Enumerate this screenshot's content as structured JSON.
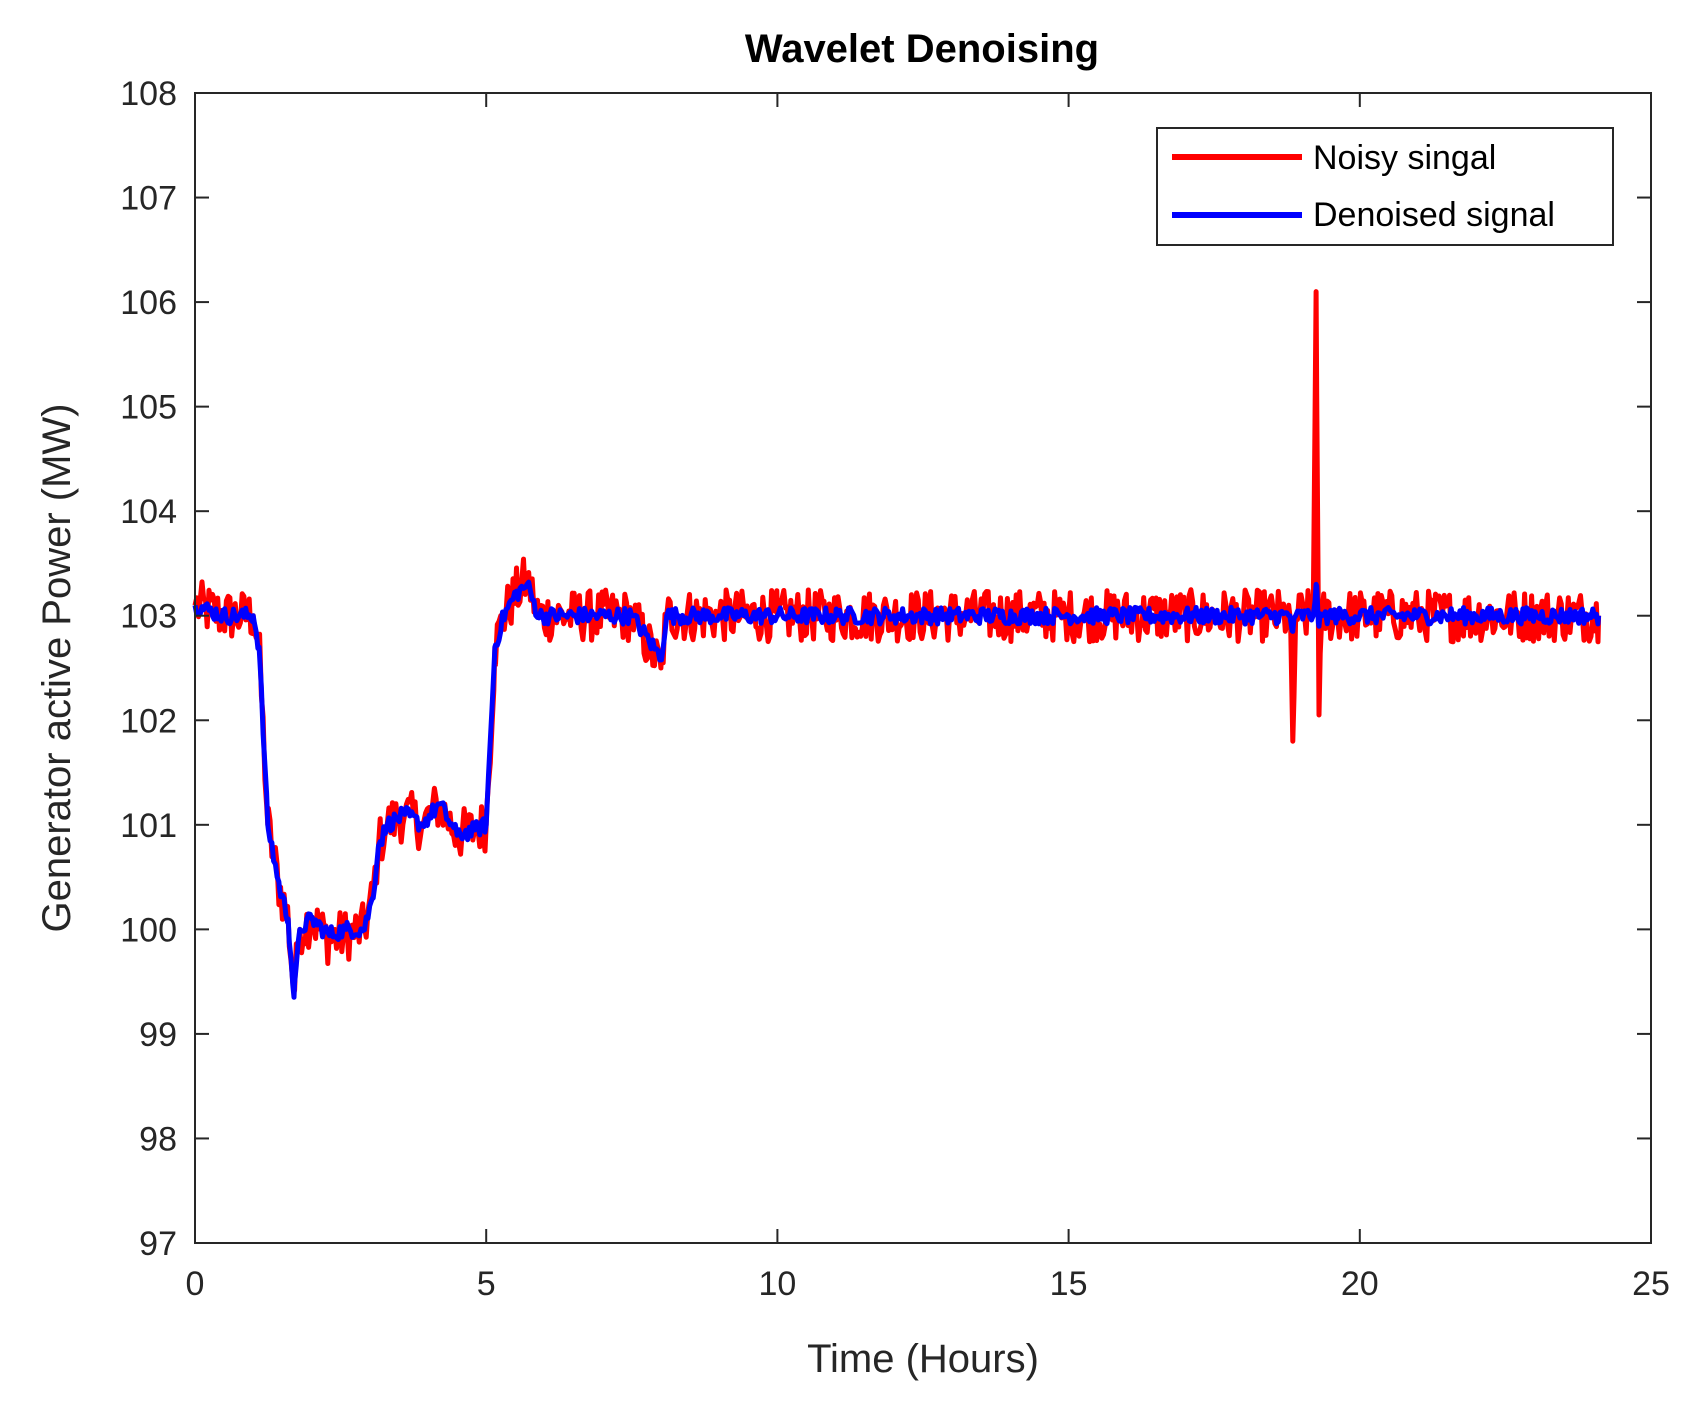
{
  "chart_data": {
    "type": "line",
    "title": "Wavelet Denoising",
    "xlabel": "Time (Hours)",
    "ylabel": "Generator active Power (MW)",
    "xlim": [
      0,
      25
    ],
    "ylim": [
      97,
      108
    ],
    "xticks": [
      0,
      5,
      10,
      15,
      20,
      25
    ],
    "yticks": [
      97,
      98,
      99,
      100,
      101,
      102,
      103,
      104,
      105,
      106,
      107,
      108
    ],
    "grid": false,
    "legend_position": "top-right",
    "colors": {
      "noisy": "#ff0000",
      "denoised": "#0000ff",
      "axis": "#262626"
    },
    "series": [
      {
        "name": "Noisy singal",
        "color": "#ff0000",
        "noise_amplitude": 0.25,
        "x": [
          0,
          0.5,
          1.0,
          1.1,
          1.25,
          1.45,
          1.6,
          1.7,
          1.8,
          2.0,
          2.3,
          2.6,
          2.9,
          3.05,
          3.15,
          3.3,
          3.6,
          3.9,
          4.2,
          4.5,
          4.8,
          5.0,
          5.15,
          5.3,
          5.5,
          5.7,
          5.9,
          6.5,
          7.5,
          8.0,
          8.1,
          8.3,
          9,
          10,
          11,
          12,
          13,
          14,
          15,
          16,
          17,
          18,
          18.8,
          18.85,
          18.9,
          19.2,
          19.25,
          19.3,
          19.35,
          19.6,
          20,
          21,
          22,
          23,
          24.1
        ],
        "y": [
          103.1,
          103.0,
          103.0,
          102.7,
          101.0,
          100.4,
          100.1,
          99.4,
          100.0,
          100.1,
          99.9,
          99.95,
          100.0,
          100.3,
          100.8,
          101.0,
          101.1,
          101.0,
          101.2,
          100.9,
          100.95,
          101.0,
          102.7,
          103.0,
          103.2,
          103.35,
          103.0,
          103.0,
          103.0,
          102.5,
          103.0,
          103.0,
          103.0,
          103.0,
          103.0,
          103.0,
          103.0,
          103.0,
          103.0,
          103.0,
          103.0,
          103.0,
          103.0,
          101.8,
          103.0,
          103.0,
          106.1,
          102.05,
          103.0,
          103.0,
          103.0,
          103.0,
          103.0,
          103.0,
          103.0
        ]
      },
      {
        "name": "Denoised signal",
        "color": "#0000ff",
        "noise_amplitude": 0.08,
        "x": [
          0,
          0.5,
          1.0,
          1.1,
          1.25,
          1.45,
          1.6,
          1.7,
          1.8,
          2.0,
          2.3,
          2.6,
          2.9,
          3.05,
          3.15,
          3.3,
          3.6,
          3.9,
          4.2,
          4.5,
          4.8,
          5.0,
          5.15,
          5.3,
          5.5,
          5.7,
          5.9,
          6.5,
          7.5,
          8.0,
          8.1,
          8.3,
          9,
          10,
          11,
          12,
          13,
          14,
          15,
          16,
          17,
          18,
          18.8,
          18.85,
          18.9,
          19.2,
          19.25,
          19.3,
          19.35,
          19.6,
          20,
          21,
          22,
          23,
          24.1
        ],
        "y": [
          103.1,
          103.0,
          103.0,
          102.7,
          101.0,
          100.4,
          100.1,
          99.35,
          100.0,
          100.1,
          99.95,
          100.0,
          100.0,
          100.3,
          100.8,
          101.0,
          101.1,
          101.0,
          101.2,
          100.9,
          100.95,
          101.0,
          102.7,
          103.0,
          103.2,
          103.3,
          103.0,
          103.0,
          103.0,
          102.6,
          103.0,
          103.0,
          103.0,
          103.0,
          103.0,
          103.0,
          103.0,
          103.0,
          103.0,
          103.0,
          103.0,
          103.0,
          103.0,
          102.85,
          103.0,
          103.0,
          103.3,
          102.9,
          103.0,
          103.0,
          103.0,
          103.0,
          103.0,
          103.0,
          103.0
        ]
      }
    ]
  }
}
